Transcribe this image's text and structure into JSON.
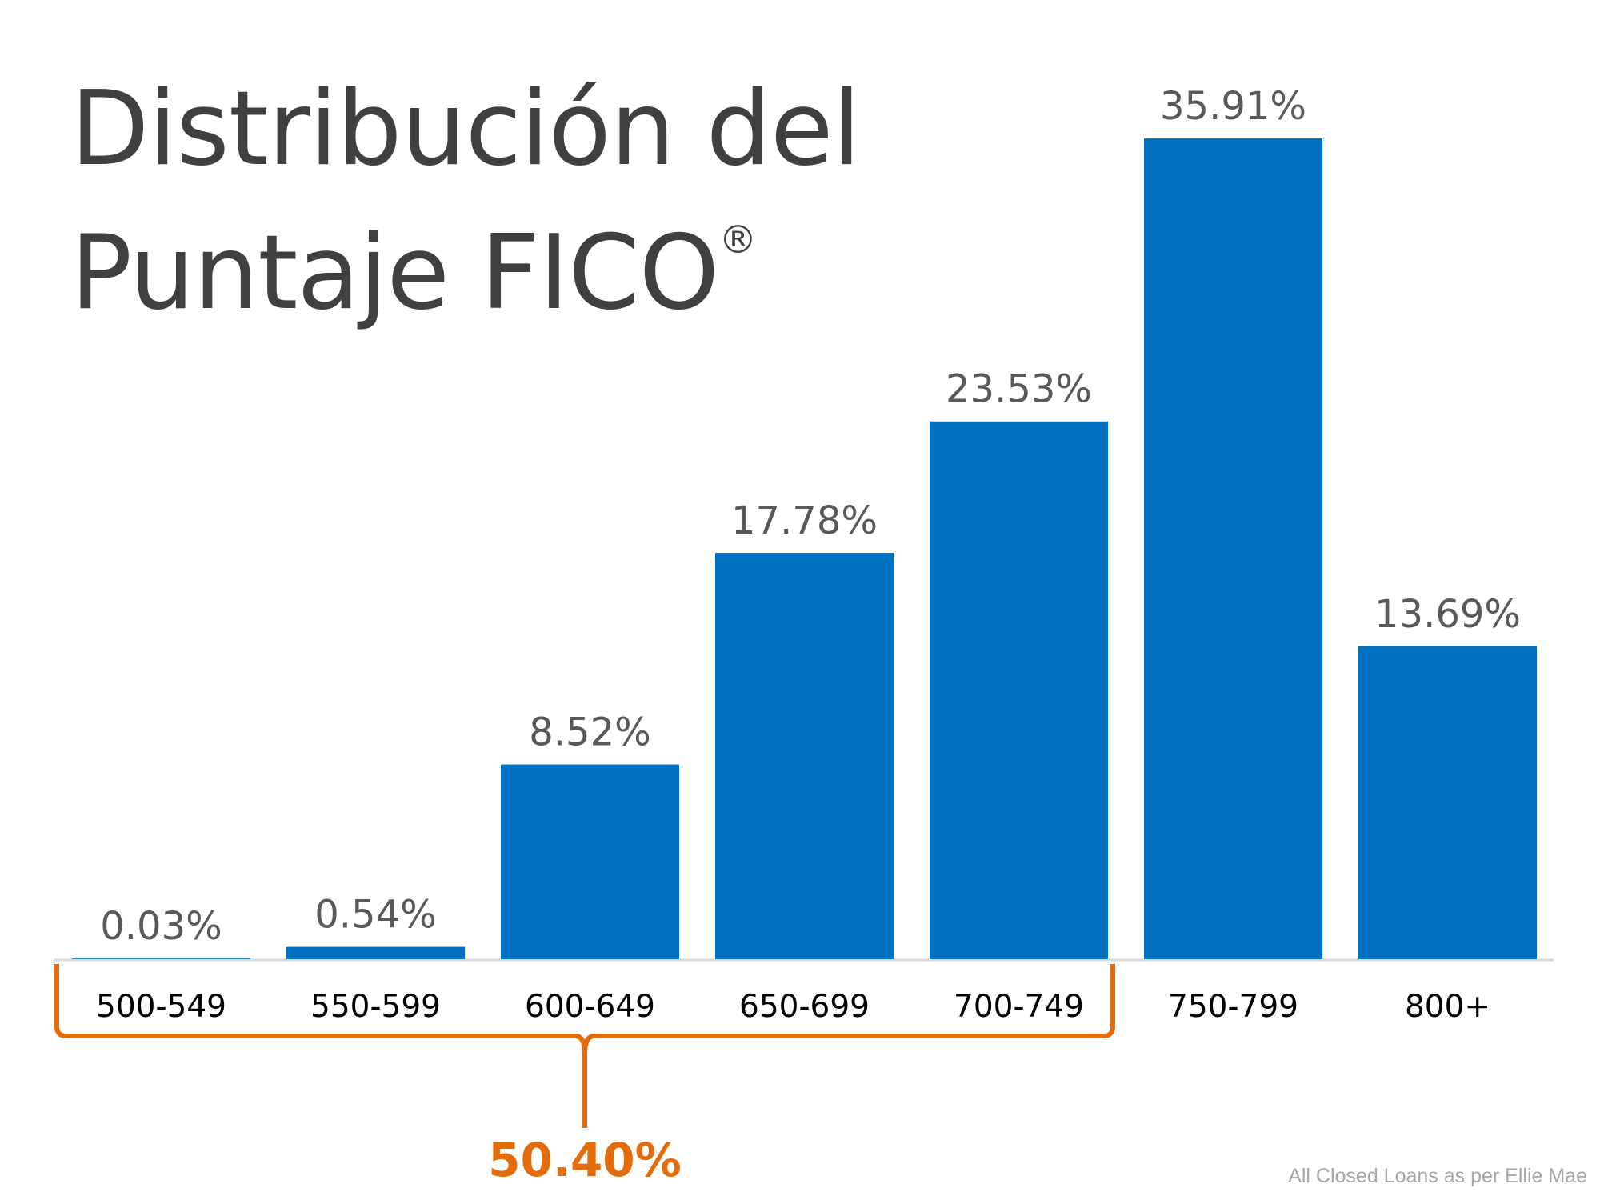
{
  "chart_data": {
    "type": "bar",
    "title_line1": "Distribución del",
    "title_line2": "Puntaje FICO",
    "title_mark": "®",
    "categories": [
      "500-549",
      "550-599",
      "600-649",
      "650-699",
      "700-749",
      "750-799",
      "800+"
    ],
    "values": [
      0.03,
      0.54,
      8.52,
      17.78,
      23.53,
      35.91,
      13.69
    ],
    "data_labels": [
      "0.03%",
      "0.54%",
      "8.52%",
      "17.78%",
      "23.53%",
      "35.91%",
      "13.69%"
    ],
    "xlabel": "",
    "ylabel": "",
    "grid": false,
    "bar_color": "#0070C0",
    "annotation": {
      "text": "50.40%",
      "spans": [
        "500-549",
        "700-749"
      ],
      "color": "#E46C0A"
    },
    "footnote": "All Closed Loans as per Ellie Mae"
  }
}
